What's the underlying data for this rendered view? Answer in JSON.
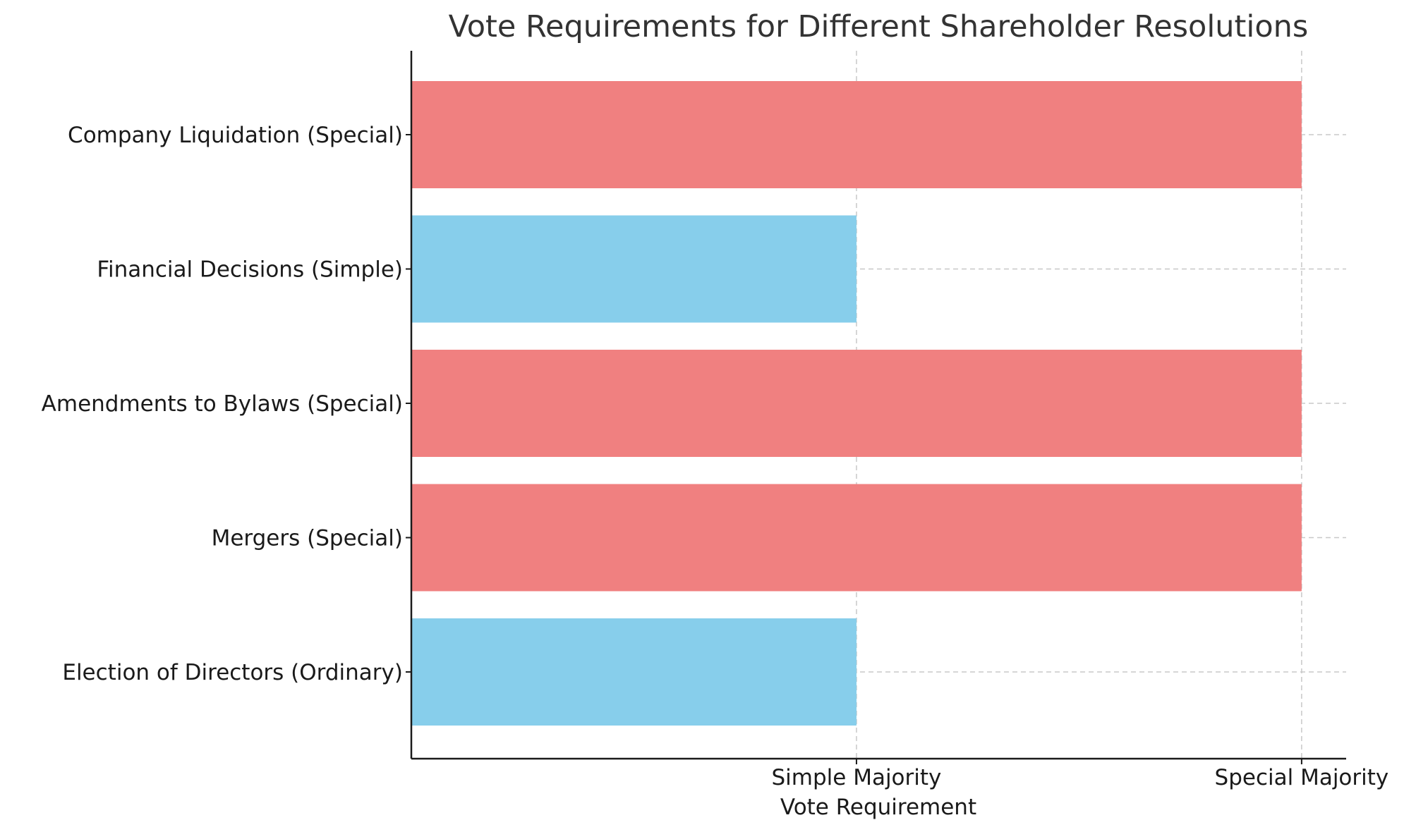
{
  "chart_data": {
    "type": "bar",
    "orientation": "horizontal",
    "title": "Vote Requirements for Different Shareholder Resolutions",
    "xlabel": "Vote Requirement",
    "ylabel": "",
    "categories": [
      "Election of Directors (Ordinary)",
      "Mergers (Special)",
      "Amendments to Bylaws (Special)",
      "Financial Decisions (Simple)",
      "Company Liquidation (Special)"
    ],
    "values": [
      1,
      2,
      2,
      1,
      2
    ],
    "bar_colors": [
      "#87CEEB",
      "#F08080",
      "#F08080",
      "#87CEEB",
      "#F08080"
    ],
    "xticks": [
      1,
      2
    ],
    "xtick_labels": [
      "Simple Majority",
      "Special Majority"
    ],
    "xlim": [
      0,
      2.1
    ],
    "grid": true,
    "legend": "none"
  }
}
